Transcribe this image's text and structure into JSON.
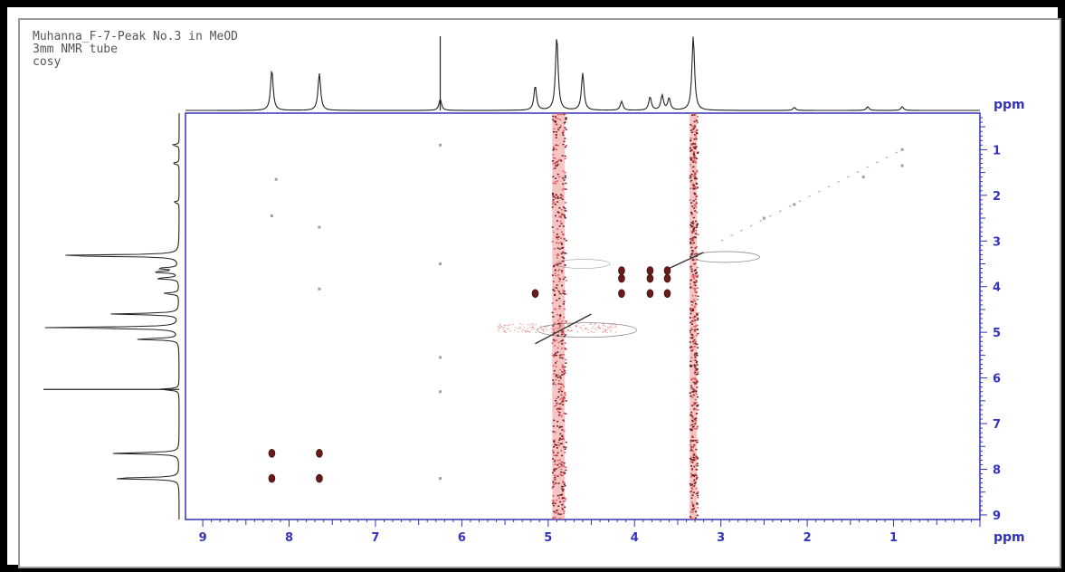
{
  "header": {
    "line1": "Muhanna_F-7-Peak No.3 in MeOD",
    "line2": "3mm NMR tube",
    "line3": "cosy"
  },
  "colors": {
    "axis": "#3333bb",
    "contour_positive": "#6b1a1a",
    "contour_noise": "#e35a5a",
    "contour_negative": "#333333",
    "spectrum": "#222222"
  },
  "chart_data": {
    "type": "scatter",
    "subtype": "2D COSY NMR contour",
    "x_axis": {
      "label": "ppm",
      "range": [
        9.2,
        0.0
      ],
      "ticks": [
        "9",
        "8",
        "7",
        "6",
        "5",
        "4",
        "3",
        "2",
        "1"
      ]
    },
    "y_axis": {
      "label": "ppm",
      "range": [
        0.2,
        9.1
      ],
      "position": "right",
      "ticks": [
        "1",
        "2",
        "3",
        "4",
        "5",
        "6",
        "7",
        "8",
        "9"
      ]
    },
    "projection_1d_peaks": [
      {
        "ppm": 8.2,
        "intensity": 0.55
      },
      {
        "ppm": 7.65,
        "intensity": 0.5
      },
      {
        "ppm": 6.25,
        "intensity": 0.15
      },
      {
        "ppm": 5.15,
        "intensity": 0.33
      },
      {
        "ppm": 4.9,
        "intensity": 1.0
      },
      {
        "ppm": 4.6,
        "intensity": 0.5
      },
      {
        "ppm": 4.15,
        "intensity": 0.12
      },
      {
        "ppm": 3.82,
        "intensity": 0.18
      },
      {
        "ppm": 3.68,
        "intensity": 0.2
      },
      {
        "ppm": 3.6,
        "intensity": 0.16
      },
      {
        "ppm": 3.32,
        "intensity": 1.0
      },
      {
        "ppm": 2.15,
        "intensity": 0.04
      },
      {
        "ppm": 1.3,
        "intensity": 0.05
      },
      {
        "ppm": 0.9,
        "intensity": 0.05
      }
    ],
    "solvent_streaks_ppm": [
      4.88,
      3.32
    ],
    "cross_peaks": [
      {
        "x": 8.2,
        "y": 7.65
      },
      {
        "x": 7.65,
        "y": 7.65
      },
      {
        "x": 8.2,
        "y": 8.2
      },
      {
        "x": 7.65,
        "y": 8.2
      },
      {
        "x": 4.15,
        "y": 3.65
      },
      {
        "x": 4.15,
        "y": 3.82
      },
      {
        "x": 4.15,
        "y": 4.15
      },
      {
        "x": 3.82,
        "y": 3.65
      },
      {
        "x": 3.82,
        "y": 3.82
      },
      {
        "x": 3.82,
        "y": 4.15
      },
      {
        "x": 3.62,
        "y": 3.65
      },
      {
        "x": 3.62,
        "y": 3.82
      },
      {
        "x": 3.62,
        "y": 4.15
      },
      {
        "x": 5.15,
        "y": 4.15
      }
    ],
    "weak_peaks": [
      {
        "x": 8.15,
        "y": 1.65
      },
      {
        "x": 8.2,
        "y": 2.45
      },
      {
        "x": 7.65,
        "y": 2.7
      },
      {
        "x": 7.65,
        "y": 4.05
      },
      {
        "x": 6.25,
        "y": 0.9
      },
      {
        "x": 6.25,
        "y": 3.5
      },
      {
        "x": 6.25,
        "y": 5.55
      },
      {
        "x": 6.25,
        "y": 6.3
      },
      {
        "x": 6.25,
        "y": 8.2
      },
      {
        "x": 2.15,
        "y": 2.2
      },
      {
        "x": 0.9,
        "y": 1.0
      },
      {
        "x": 0.9,
        "y": 1.35
      },
      {
        "x": 1.35,
        "y": 1.6
      },
      {
        "x": 2.5,
        "y": 2.5
      }
    ],
    "diagonal": true
  }
}
